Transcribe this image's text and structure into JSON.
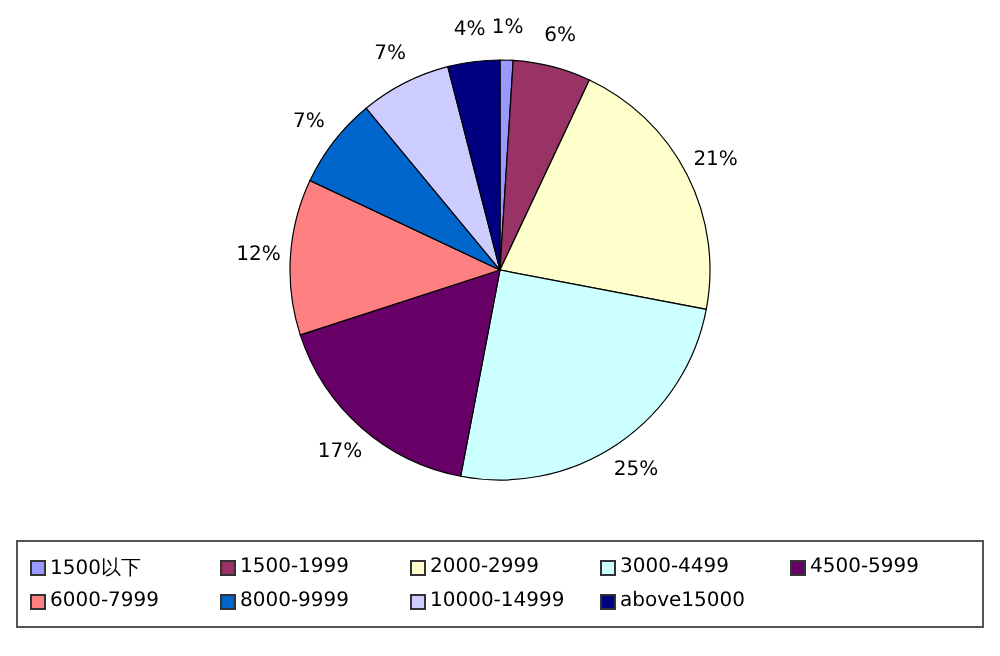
{
  "chart_data": {
    "type": "pie",
    "categories": [
      "1500以下",
      "1500-1999",
      "2000-2999",
      "3000-4499",
      "4500-5999",
      "6000-7999",
      "8000-9999",
      "10000-14999",
      "above15000"
    ],
    "values": [
      1,
      6,
      21,
      25,
      17,
      12,
      7,
      7,
      4
    ],
    "colors": [
      "#9999ff",
      "#993366",
      "#ffffcc",
      "#ccffff",
      "#660066",
      "#ff8080",
      "#0066cc",
      "#ccccff",
      "#000080"
    ],
    "value_labels": [
      "1%",
      "6%",
      "21%",
      "25%",
      "17%",
      "12%",
      "7%",
      "7%",
      "4%"
    ],
    "legend": "bottom"
  }
}
